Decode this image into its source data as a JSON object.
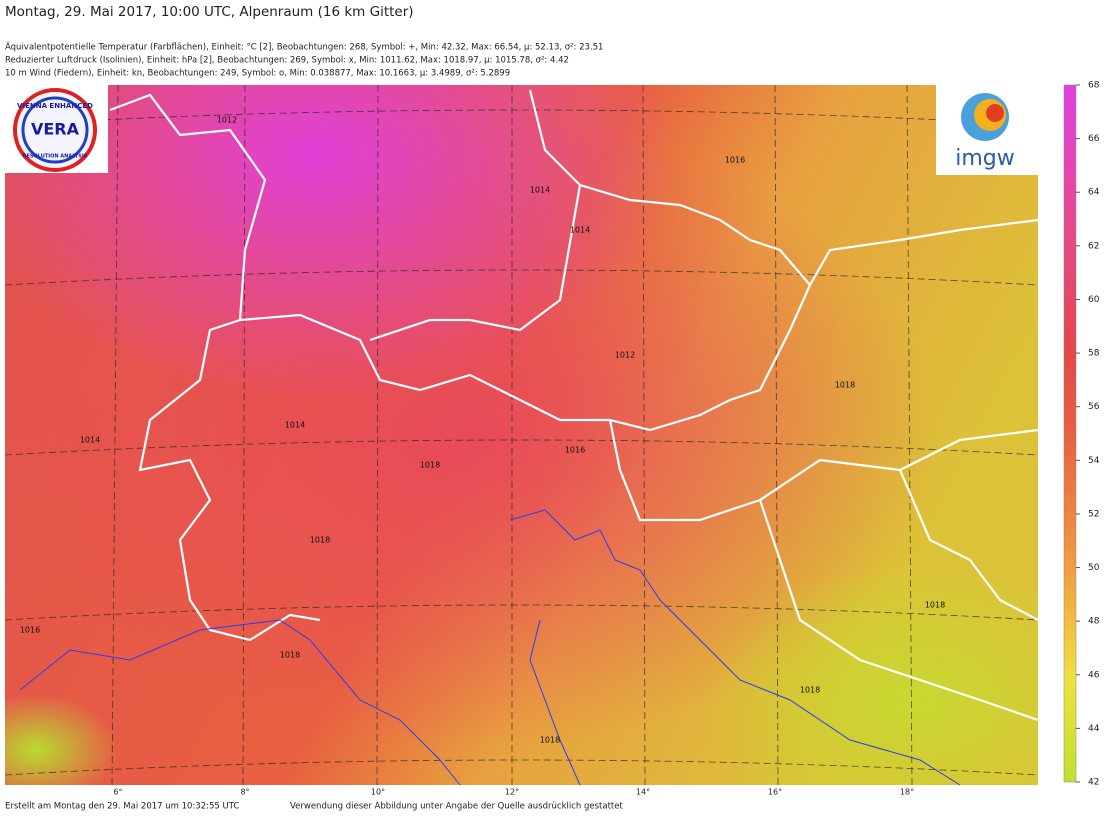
{
  "header": {
    "title": "Montag, 29. Mai 2017, 10:00 UTC, Alpenraum (16 km Gitter)",
    "info_lines": [
      "Äquivalentpotentielle Temperatur (Farbflächen), Einheit: °C [2], Beobachtungen: 268, Symbol: +, Min: 42.32, Max: 66.54,  µ: 52.13, σ²: 23.51",
      "Reduzierter Luftdruck (Isolinien), Einheit: hPa [2], Beobachtungen: 269, Symbol: x, Min: 1011.62, Max: 1018.97,  µ: 1015.78, σ²: 4.42",
      "10 m Wind (Fiedern), Einheit: kn, Beobachtungen: 249, Symbol: o, Min: 0.038877, Max: 10.1663,  µ: 3.4989, σ²: 5.2899"
    ]
  },
  "logos": {
    "vera_top": "VIENNA ENHANCED",
    "vera_mid": "VERA",
    "vera_bottom": "RESOLUTION ANALYSIS",
    "imgw": "imgw"
  },
  "colorbar": {
    "range": [
      42,
      68
    ],
    "ticks": [
      42,
      44,
      46,
      48,
      50,
      52,
      54,
      56,
      58,
      60,
      62,
      64,
      66,
      68
    ]
  },
  "longitude_labels": [
    "6°",
    "8°",
    "10°",
    "12°",
    "14°",
    "16°",
    "18°"
  ],
  "isobar_labels": [
    "1012",
    "1014",
    "1014",
    "1016",
    "1014",
    "1016",
    "1018",
    "1018",
    "1018",
    "1016",
    "1018",
    "1018",
    "1018",
    "1014",
    "1012",
    "1018"
  ],
  "footer": {
    "created": "Erstellt am Montag den 29. Mai 2017 um 10:32:55 UTC",
    "usage": "Verwendung dieser Abbildung unter Angabe der Quelle ausdrücklich gestattet"
  }
}
